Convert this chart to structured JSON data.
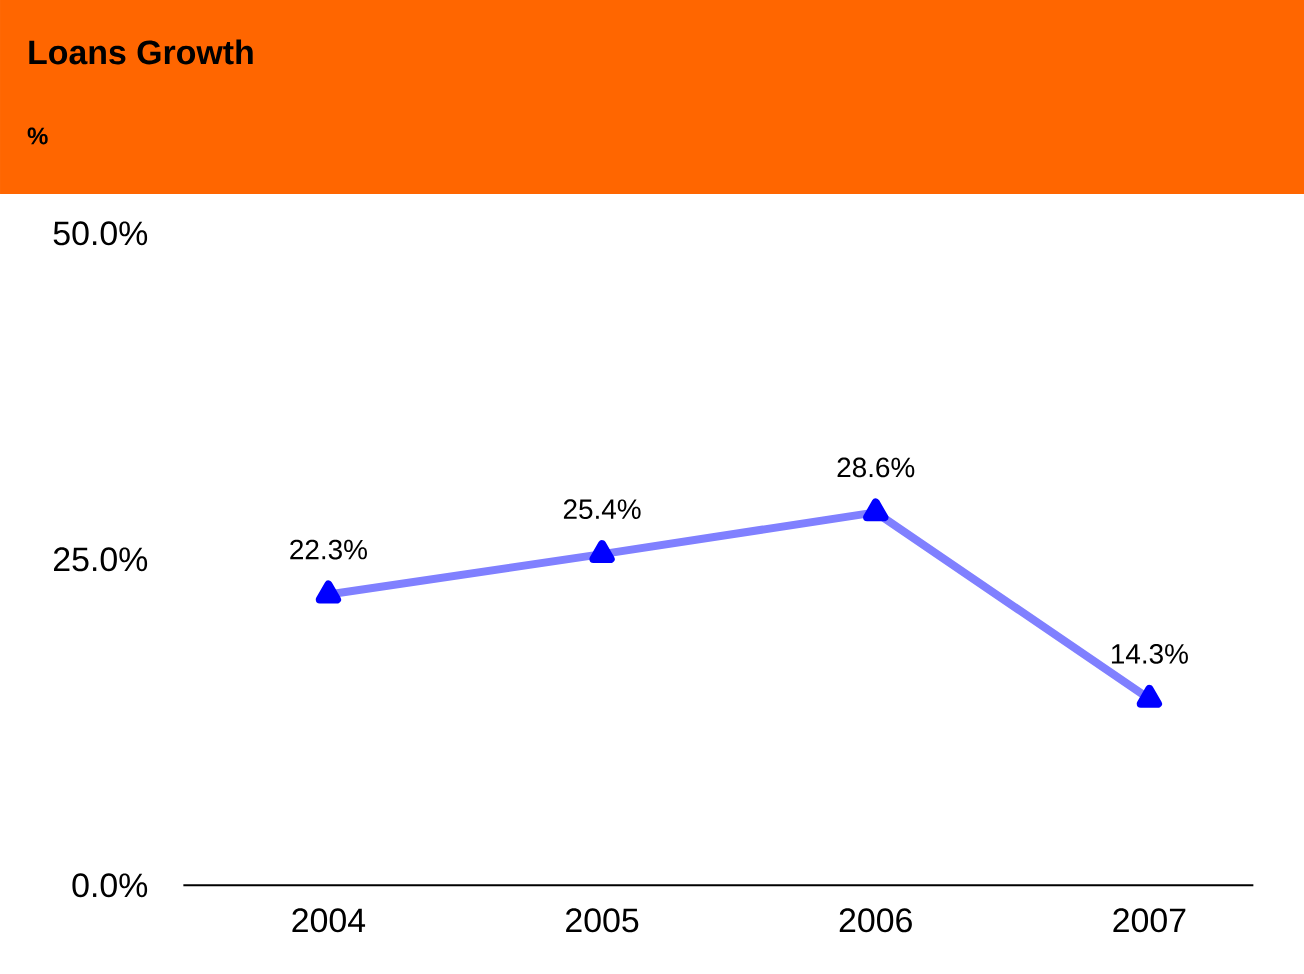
{
  "chart_data": {
    "type": "line",
    "title": "Loans Growth",
    "subtitle": "%",
    "categories": [
      "2004",
      "2005",
      "2006",
      "2007"
    ],
    "series": [
      {
        "color": "#8080ff",
        "values": [
          22.3,
          25.4,
          28.6,
          14.3
        ]
      }
    ],
    "value_labels": [
      "22.3%",
      "25.4%",
      "28.6%",
      "14.3%"
    ],
    "ylim": [
      0,
      50
    ],
    "yticks": [
      {
        "value": 0,
        "label": "0.0%"
      },
      {
        "value": 25,
        "label": "25.0%"
      },
      {
        "value": 50,
        "label": "50.0%"
      }
    ],
    "marker": "triangle",
    "line_style": "solid",
    "grid": false,
    "legend": false
  }
}
